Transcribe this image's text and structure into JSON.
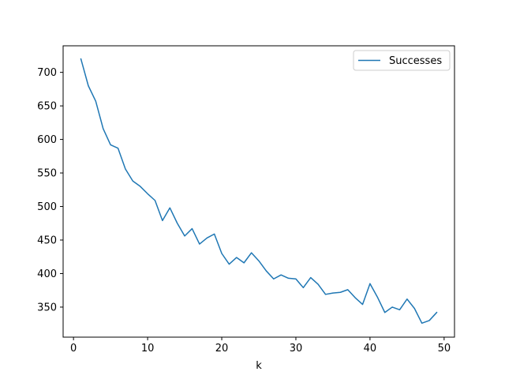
{
  "chart_data": {
    "type": "line",
    "title": "",
    "xlabel": "k",
    "ylabel": "",
    "xlim": [
      -1.4,
      51.4
    ],
    "ylim": [
      305.2,
      739.6
    ],
    "xticks": [
      0,
      10,
      20,
      30,
      40,
      50
    ],
    "yticks": [
      350,
      400,
      450,
      500,
      550,
      600,
      650,
      700
    ],
    "grid": false,
    "legend_position": "top-right",
    "series": [
      {
        "name": "Successes",
        "color": "#1f77b4",
        "x": [
          1,
          2,
          3,
          4,
          5,
          6,
          7,
          8,
          9,
          10,
          11,
          12,
          13,
          14,
          15,
          16,
          17,
          18,
          19,
          20,
          21,
          22,
          23,
          24,
          25,
          26,
          27,
          28,
          29,
          30,
          31,
          32,
          33,
          34,
          35,
          36,
          37,
          38,
          39,
          40,
          41,
          42,
          43,
          44,
          45,
          46,
          47,
          48,
          49
        ],
        "y": [
          720,
          680,
          657,
          616,
          592,
          587,
          556,
          538,
          530,
          519,
          509,
          479,
          498,
          475,
          456,
          467,
          444,
          453,
          459,
          430,
          414,
          424,
          416,
          431,
          419,
          404,
          392,
          398,
          393,
          392,
          379,
          394,
          384,
          369,
          371,
          372,
          376,
          364,
          354,
          385,
          365,
          342,
          350,
          346,
          362,
          348,
          326,
          330,
          342
        ]
      }
    ]
  }
}
